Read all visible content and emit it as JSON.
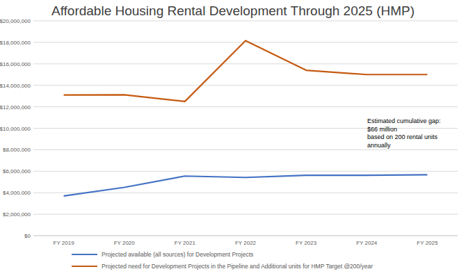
{
  "chart_data": {
    "type": "line",
    "title": "Affordable Housing Rental Development Through 2025 (HMP)",
    "categories": [
      "FY 2019",
      "FY 2020",
      "FY 2021",
      "FY 2022",
      "FY 2023",
      "FY 2024",
      "FY 2025"
    ],
    "series": [
      {
        "name": "Projected available (all sources) for Development Projects",
        "color": "#4472c4",
        "values": [
          3700000,
          4500000,
          5550000,
          5420000,
          5620000,
          5620000,
          5670000
        ]
      },
      {
        "name": "Projected need for Development Projects in the Pipeline and Additional units for HMP Target @200/year",
        "color": "#c55a11",
        "values": [
          13100000,
          13120000,
          12500000,
          18150000,
          15400000,
          15000000,
          15000000
        ]
      }
    ],
    "ylim": [
      0,
      20000000
    ],
    "yticks": [
      {
        "value": 0,
        "label": "$0"
      },
      {
        "value": 2000000,
        "label": "$2,000,000"
      },
      {
        "value": 4000000,
        "label": "$4,000,000"
      },
      {
        "value": 6000000,
        "label": "$6,000,000"
      },
      {
        "value": 8000000,
        "label": "$8,000,000"
      },
      {
        "value": 10000000,
        "label": "$10,000,000"
      },
      {
        "value": 12000000,
        "label": "$12,000,000"
      },
      {
        "value": 14000000,
        "label": "$14,000,000"
      },
      {
        "value": 16000000,
        "label": "$16,000,000"
      },
      {
        "value": 18000000,
        "label": "$18,000,000"
      },
      {
        "value": 20000000,
        "label": "$20,000,000"
      }
    ],
    "annotations": [
      "Estimated cumulative gap:",
      "$66 million",
      "based on 200 rental units",
      "annually"
    ],
    "grid": true,
    "legend": "bottom"
  }
}
